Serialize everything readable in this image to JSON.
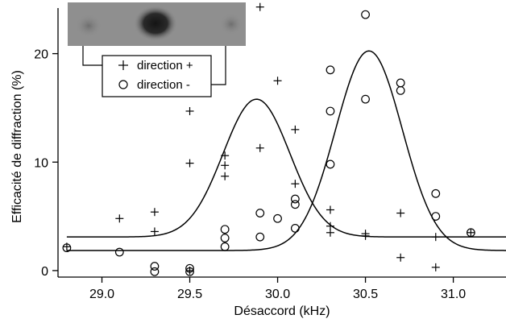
{
  "chart_data": {
    "type": "scatter",
    "xlabel": "Désaccord (kHz)",
    "ylabel": "Efficacité de diffraction (%)",
    "xlim": [
      28.75,
      31.3
    ],
    "ylim": [
      -0.6,
      24.5
    ],
    "x_ticks": [
      "29.0",
      "29.5",
      "30.0",
      "30.5",
      "31.0"
    ],
    "x_tick_values": [
      29.0,
      29.5,
      30.0,
      30.5,
      31.0
    ],
    "y_ticks": [
      "0",
      "10",
      "20"
    ],
    "y_tick_values": [
      0,
      10,
      20
    ],
    "legend_placement": "top-left",
    "inset": "absorption image strip above the legend (three spots, bright centre-left)",
    "series": [
      {
        "name": "direction +",
        "marker": "plus",
        "points": [
          [
            28.8,
            2.2
          ],
          [
            29.1,
            4.8
          ],
          [
            29.3,
            5.4
          ],
          [
            29.3,
            3.6
          ],
          [
            29.5,
            14.7
          ],
          [
            29.5,
            9.9
          ],
          [
            29.5,
            0.0
          ],
          [
            29.7,
            10.6
          ],
          [
            29.7,
            9.7
          ],
          [
            29.7,
            8.7
          ],
          [
            29.9,
            24.3
          ],
          [
            29.9,
            11.3
          ],
          [
            30.0,
            17.5
          ],
          [
            30.1,
            13.0
          ],
          [
            30.1,
            8.0
          ],
          [
            30.3,
            5.6
          ],
          [
            30.3,
            4.1
          ],
          [
            30.3,
            3.5
          ],
          [
            30.5,
            3.4
          ],
          [
            30.5,
            3.2
          ],
          [
            30.7,
            5.3
          ],
          [
            30.7,
            1.2
          ],
          [
            30.9,
            3.1
          ],
          [
            30.9,
            0.3
          ],
          [
            31.1,
            3.5
          ]
        ],
        "fit": {
          "type": "gaussian",
          "baseline": 3.1,
          "amplitude": 12.7,
          "center": 29.88,
          "sigma": 0.19
        }
      },
      {
        "name": "direction -",
        "marker": "circle",
        "points": [
          [
            28.8,
            2.1
          ],
          [
            29.1,
            1.7
          ],
          [
            29.3,
            0.4
          ],
          [
            29.3,
            -0.1
          ],
          [
            29.5,
            0.2
          ],
          [
            29.5,
            -0.1
          ],
          [
            29.7,
            3.8
          ],
          [
            29.7,
            3.0
          ],
          [
            29.7,
            2.2
          ],
          [
            29.9,
            5.3
          ],
          [
            29.9,
            3.1
          ],
          [
            30.0,
            4.8
          ],
          [
            30.1,
            6.6
          ],
          [
            30.1,
            6.1
          ],
          [
            30.1,
            3.9
          ],
          [
            30.3,
            18.5
          ],
          [
            30.3,
            14.7
          ],
          [
            30.3,
            9.8
          ],
          [
            30.5,
            23.6
          ],
          [
            30.5,
            15.8
          ],
          [
            30.7,
            17.3
          ],
          [
            30.7,
            16.6
          ],
          [
            30.9,
            7.1
          ],
          [
            30.9,
            5.0
          ],
          [
            31.1,
            3.5
          ]
        ],
        "fit": {
          "type": "gaussian",
          "baseline": 1.85,
          "amplitude": 18.4,
          "center": 30.52,
          "sigma": 0.19
        }
      }
    ]
  }
}
